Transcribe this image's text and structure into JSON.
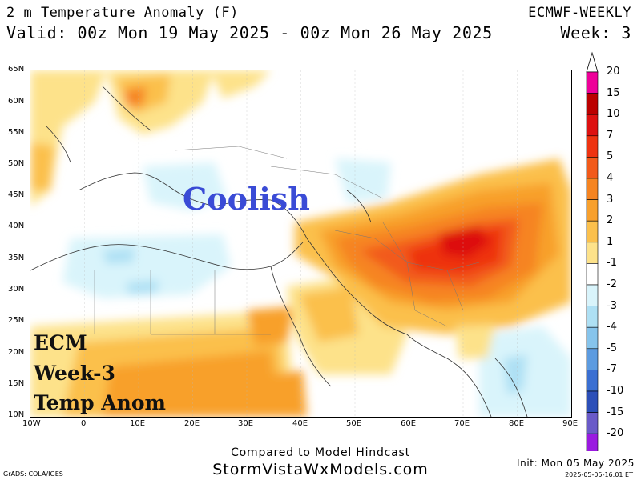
{
  "header": {
    "title": "2 m Temperature Anomaly (F)",
    "valid": "Valid: 00z Mon 19 May 2025 - 00z Mon 26 May 2025",
    "model": "ECMWF-WEEKLY",
    "week": "Week: 3"
  },
  "map": {
    "lat_labels": [
      "65N",
      "60N",
      "55N",
      "50N",
      "45N",
      "40N",
      "35N",
      "30N",
      "25N",
      "20N",
      "15N",
      "10N"
    ],
    "lon_labels": [
      "10W",
      "0",
      "10E",
      "20E",
      "30E",
      "40E",
      "50E",
      "60E",
      "70E",
      "80E",
      "90E"
    ],
    "overlay_coolish": "Coolish",
    "overlay_line1": "ECM",
    "overlay_line2": "Week-3",
    "overlay_line3": "Temp Anom"
  },
  "colorbar": {
    "labels": [
      "20",
      "15",
      "10",
      "7",
      "5",
      "4",
      "3",
      "2",
      "1",
      "-1",
      "-2",
      "-3",
      "-4",
      "-5",
      "-7",
      "-10",
      "-15",
      "-20"
    ],
    "colors": [
      "#ee0099",
      "#bb0000",
      "#dd1111",
      "#ee3311",
      "#f25a1a",
      "#f68420",
      "#f8a02c",
      "#fbc04c",
      "#fde28a",
      "#ffffff",
      "#d9f4fb",
      "#aee0f4",
      "#86c4ec",
      "#5c9be0",
      "#3a6fd2",
      "#2c4fb8",
      "#6a5ac8",
      "#9a1ae0"
    ]
  },
  "footer": {
    "compared": "Compared to Model Hindcast",
    "site": "StormVistaWxModels.com",
    "grads": "GrADS: COLA/IGES",
    "init": "Init: Mon 05 May 2025",
    "stamp": "2025-05-05-16:01 ET"
  }
}
